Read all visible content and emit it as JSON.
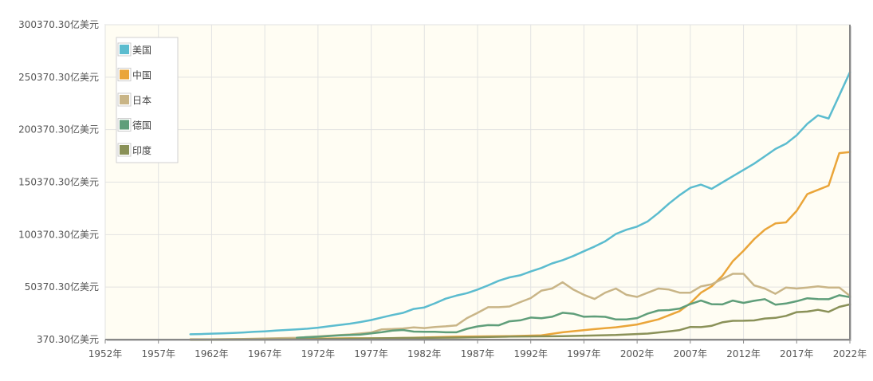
{
  "chart_data": {
    "type": "line",
    "title": "",
    "xlabel": "",
    "ylabel": "",
    "x_ticks": [
      1952,
      1957,
      1962,
      1967,
      1972,
      1977,
      1982,
      1987,
      1992,
      1997,
      2002,
      2007,
      2012,
      2017,
      2022
    ],
    "x_tick_labels": [
      "1952年",
      "1957年",
      "1962年",
      "1967年",
      "1972年",
      "1977年",
      "1982年",
      "1987年",
      "1992年",
      "1997年",
      "2002年",
      "2007年",
      "2012年",
      "2017年",
      "2022年"
    ],
    "y_ticks": [
      370.3,
      50370.3,
      100370.3,
      150370.3,
      200370.3,
      250370.3,
      300370.3
    ],
    "y_tick_labels": [
      "370.30亿美元",
      "50370.30亿美元",
      "100370.30亿美元",
      "150370.30亿美元",
      "200370.30亿美元",
      "250370.30亿美元",
      "300370.30亿美元"
    ],
    "xlim": [
      1952,
      2022
    ],
    "ylim": [
      370.3,
      300370.3
    ],
    "grid": true,
    "legend_position": "top-left",
    "series": [
      {
        "name": "美国",
        "color": "#5bbccf",
        "x": [
          1960,
          1961,
          1962,
          1963,
          1964,
          1965,
          1966,
          1967,
          1968,
          1969,
          1970,
          1971,
          1972,
          1973,
          1974,
          1975,
          1976,
          1977,
          1978,
          1979,
          1980,
          1981,
          1982,
          1983,
          1984,
          1985,
          1986,
          1987,
          1988,
          1989,
          1990,
          1991,
          1992,
          1993,
          1994,
          1995,
          1996,
          1997,
          1998,
          1999,
          2000,
          2001,
          2002,
          2003,
          2004,
          2005,
          2006,
          2007,
          2008,
          2009,
          2010,
          2011,
          2012,
          2013,
          2014,
          2015,
          2016,
          2017,
          2018,
          2019,
          2020,
          2021,
          2022
        ],
        "y": [
          5400,
          5600,
          6000,
          6200,
          6600,
          7100,
          7700,
          8200,
          8900,
          9500,
          10100,
          10700,
          11700,
          13000,
          14200,
          15500,
          17100,
          19000,
          21400,
          23800,
          25800,
          29500,
          31000,
          34900,
          39300,
          42200,
          44600,
          48000,
          52000,
          56400,
          59600,
          61600,
          65200,
          68600,
          72900,
          76000,
          80000,
          84500,
          89000,
          94000,
          101000,
          105000,
          108000,
          113000,
          121000,
          130000,
          138000,
          145000,
          148000,
          144000,
          150000,
          156000,
          162000,
          168000,
          175000,
          182000,
          187000,
          195000,
          206000,
          214000,
          211000,
          233000,
          255000
        ]
      },
      {
        "name": "中国",
        "color": "#eaa539",
        "x": [
          1960,
          1962,
          1965,
          1970,
          1975,
          1978,
          1980,
          1985,
          1990,
          1993,
          1995,
          1998,
          2000,
          2002,
          2004,
          2006,
          2007,
          2008,
          2009,
          2010,
          2011,
          2012,
          2013,
          2014,
          2015,
          2016,
          2017,
          2018,
          2019,
          2020,
          2021,
          2022
        ],
        "y": [
          600,
          500,
          700,
          900,
          1600,
          1500,
          1900,
          3100,
          3600,
          4400,
          7300,
          10300,
          12100,
          14700,
          19600,
          27500,
          35000,
          45000,
          51000,
          61000,
          75000,
          85000,
          96000,
          105000,
          111000,
          112000,
          123000,
          139000,
          143000,
          147000,
          178000,
          179000
        ]
      },
      {
        "name": "日本",
        "color": "#c9b587",
        "x": [
          1960,
          1965,
          1970,
          1975,
          1977,
          1978,
          1979,
          1980,
          1981,
          1982,
          1983,
          1984,
          1985,
          1986,
          1987,
          1988,
          1989,
          1990,
          1991,
          1992,
          1993,
          1994,
          1995,
          1996,
          1997,
          1998,
          1999,
          2000,
          2001,
          2002,
          2003,
          2004,
          2005,
          2006,
          2007,
          2008,
          2009,
          2010,
          2011,
          2012,
          2013,
          2014,
          2015,
          2016,
          2017,
          2018,
          2019,
          2020,
          2021,
          2022
        ],
        "y": [
          400,
          900,
          2100,
          5200,
          7100,
          10100,
          10400,
          10900,
          12000,
          11300,
          12400,
          13000,
          13800,
          20800,
          25800,
          31200,
          31200,
          31900,
          36000,
          39900,
          47000,
          49000,
          55000,
          48000,
          43000,
          39000,
          45000,
          49000,
          43000,
          41000,
          45000,
          49000,
          48000,
          45000,
          45000,
          51000,
          53000,
          58000,
          63000,
          63000,
          52000,
          49000,
          44000,
          50000,
          49000,
          50000,
          51000,
          50000,
          50000,
          42000
        ]
      },
      {
        "name": "德国",
        "color": "#5f9e7a",
        "x": [
          1970,
          1972,
          1974,
          1976,
          1978,
          1979,
          1980,
          1981,
          1982,
          1983,
          1984,
          1985,
          1986,
          1987,
          1988,
          1989,
          1990,
          1991,
          1992,
          1993,
          1994,
          1995,
          1996,
          1997,
          1998,
          1999,
          2000,
          2001,
          2002,
          2003,
          2004,
          2005,
          2006,
          2007,
          2008,
          2009,
          2010,
          2011,
          2012,
          2013,
          2014,
          2015,
          2016,
          2017,
          2018,
          2019,
          2020,
          2021,
          2022
        ],
        "y": [
          2100,
          3000,
          4300,
          5100,
          7400,
          8900,
          9500,
          8000,
          7800,
          7700,
          7300,
          7300,
          10600,
          12900,
          14100,
          14000,
          17800,
          18700,
          21300,
          20700,
          22100,
          25900,
          25000,
          22100,
          22400,
          22000,
          19500,
          19500,
          20800,
          25100,
          28100,
          28500,
          29900,
          34200,
          37500,
          34100,
          33900,
          37500,
          35300,
          37300,
          38900,
          33600,
          34700,
          36900,
          39700,
          38900,
          38800,
          42600,
          40800
        ]
      },
      {
        "name": "印度",
        "color": "#8a9158",
        "x": [
          1960,
          1970,
          1980,
          1985,
          1990,
          1995,
          2000,
          2003,
          2005,
          2006,
          2007,
          2008,
          2009,
          2010,
          2011,
          2012,
          2013,
          2014,
          2015,
          2016,
          2017,
          2018,
          2019,
          2020,
          2021,
          2022
        ],
        "y": [
          370,
          600,
          1900,
          2300,
          3200,
          3600,
          4700,
          6100,
          8200,
          9400,
          12400,
          12200,
          13400,
          16800,
          18200,
          18300,
          18600,
          20400,
          21000,
          22900,
          26500,
          27000,
          28700,
          26700,
          31500,
          33900
        ]
      }
    ]
  }
}
